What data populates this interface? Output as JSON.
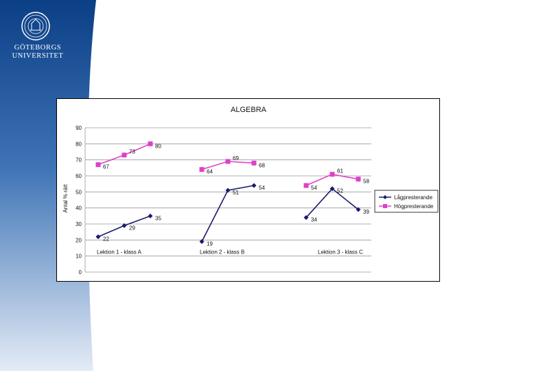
{
  "university": {
    "line1": "GÖTEBORGS",
    "line2": "UNIVERSITET"
  },
  "colors": {
    "band_dark": "#0b3f86",
    "band_light": "#e4ecf6",
    "low_series": "#1a1a6e",
    "high_series": "#e040c8"
  },
  "chart_data": {
    "type": "line",
    "title": "ALGEBRA",
    "ylabel": "Antal % rätt",
    "ylim": [
      0,
      90
    ],
    "yticks": [
      0,
      10,
      20,
      30,
      40,
      50,
      60,
      70,
      80,
      90
    ],
    "grid": true,
    "legend_position": "right",
    "groups": [
      {
        "label": "Lektion 1 - klass A"
      },
      {
        "label": "Lektion 2 - klass B"
      },
      {
        "label": "Lektion 3 - klass C"
      }
    ],
    "series": [
      {
        "name": "Lågpresterande",
        "color": "#1a1a6e",
        "marker": "diamond",
        "groups": [
          [
            22,
            29,
            35
          ],
          [
            19,
            51,
            54
          ],
          [
            34,
            52,
            39
          ]
        ]
      },
      {
        "name": "Högpresterande",
        "color": "#e040c8",
        "marker": "square",
        "groups": [
          [
            67,
            73,
            80
          ],
          [
            64,
            69,
            68
          ],
          [
            54,
            61,
            58
          ]
        ]
      }
    ]
  }
}
